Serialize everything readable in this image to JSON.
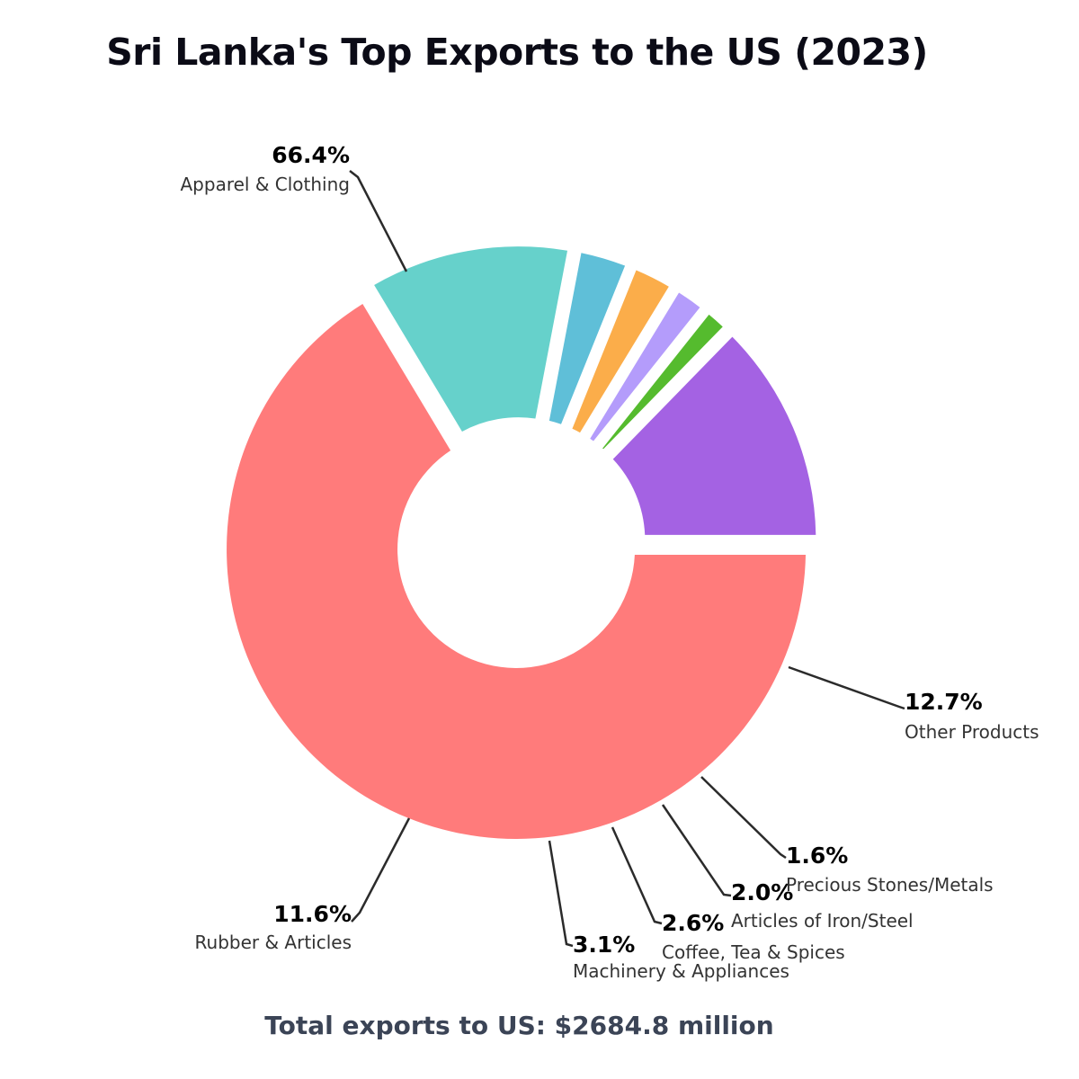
{
  "chart_data": {
    "type": "pie",
    "title": "Sri Lanka's Top Exports to the US (2023)",
    "footer": "Total exports to US: $2684.8 million",
    "unit": "%",
    "slices": [
      {
        "label": "Apparel & Clothing",
        "value": 66.4,
        "value_label": "66.4%",
        "color": "#ff7b7b"
      },
      {
        "label": "Rubber & Articles",
        "value": 11.6,
        "value_label": "11.6%",
        "color": "#66d1cb"
      },
      {
        "label": "Machinery & Appliances",
        "value": 3.1,
        "value_label": "3.1%",
        "color": "#5fbfd8"
      },
      {
        "label": "Coffee, Tea & Spices",
        "value": 2.6,
        "value_label": "2.6%",
        "color": "#fbad4a"
      },
      {
        "label": "Articles of Iron/Steel",
        "value": 2.0,
        "value_label": "2.0%",
        "color": "#b49cfb"
      },
      {
        "label": "Precious Stones/Metals",
        "value": 1.6,
        "value_label": "1.6%",
        "color": "#55bb2e"
      },
      {
        "label": "Other Products",
        "value": 12.7,
        "value_label": "12.7%",
        "color": "#a462e3"
      }
    ]
  }
}
